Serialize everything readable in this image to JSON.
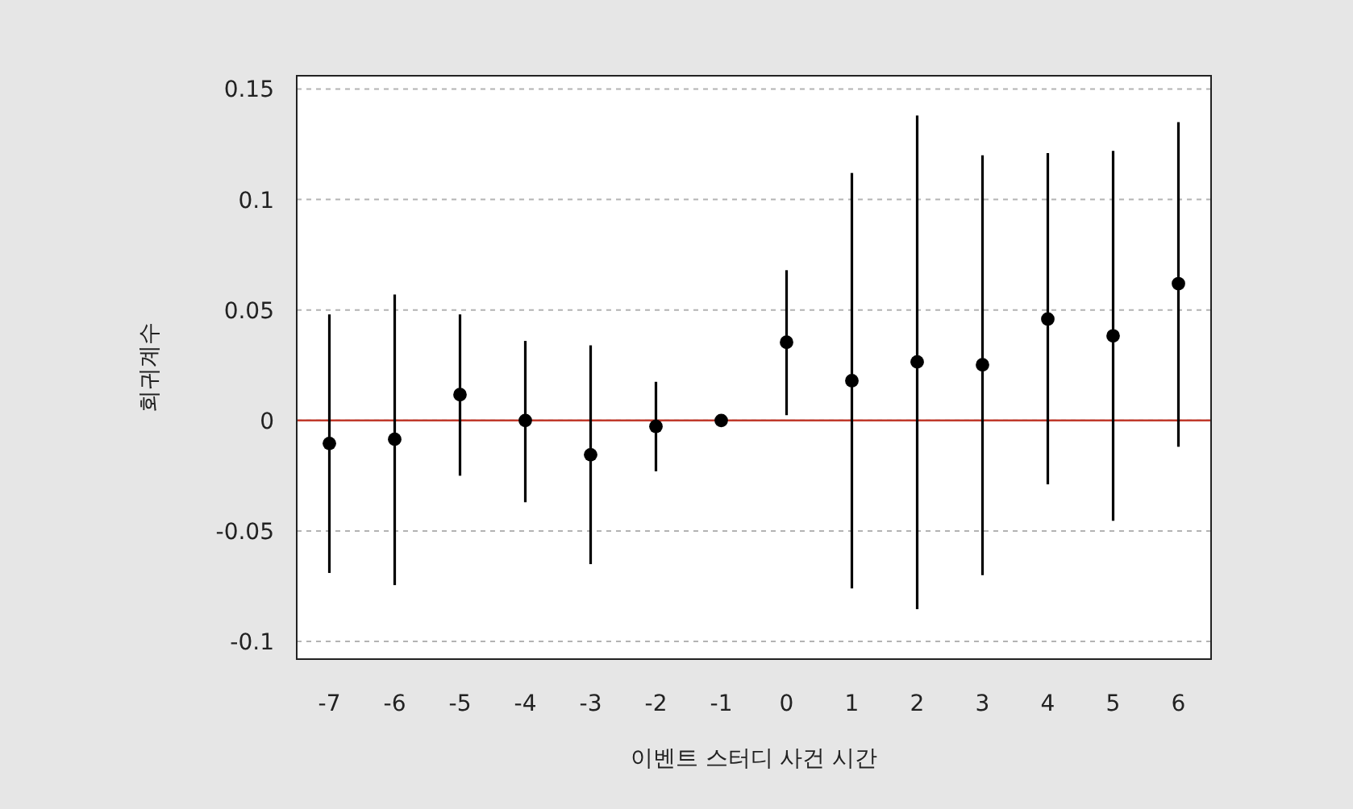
{
  "chart_data": {
    "type": "scatter",
    "xlabel": "이벤트 스터디 사건 시간",
    "ylabel": "회귀계수",
    "categories": [
      "-7",
      "-6",
      "-5",
      "-4",
      "-3",
      "-2",
      "-1",
      "0",
      "1",
      "2",
      "3",
      "4",
      "5",
      "6"
    ],
    "series": [
      {
        "color": "#000000",
        "values": [
          -0.0104,
          -0.0085,
          0.0117,
          0,
          -0.0155,
          -0.0027,
          0,
          0.0354,
          0.018,
          0.0265,
          0.0252,
          0.0459,
          0.0383,
          0.0619
        ],
        "errors": [
          [
            -0.069,
            0.048
          ],
          [
            -0.0745,
            0.057
          ],
          [
            -0.025,
            0.048
          ],
          [
            -0.037,
            0.036
          ],
          [
            -0.065,
            0.034
          ],
          [
            -0.023,
            0.0175
          ],
          null,
          [
            0.0024,
            0.068
          ],
          [
            -0.076,
            0.112
          ],
          [
            -0.0854,
            0.138
          ],
          [
            -0.07,
            0.12
          ],
          [
            -0.0289,
            0.121
          ],
          [
            -0.0454,
            0.122
          ],
          [
            -0.0119,
            0.135
          ]
        ]
      }
    ],
    "ylim": [
      -0.108,
      0.156
    ],
    "yticks": [
      -0.1,
      -0.05,
      0,
      0.05,
      0.1,
      0.15
    ],
    "grid": "y",
    "marker": "circle",
    "ref_lines": [
      {
        "axis": "y",
        "value": 0,
        "color": "#c0392b"
      }
    ]
  }
}
